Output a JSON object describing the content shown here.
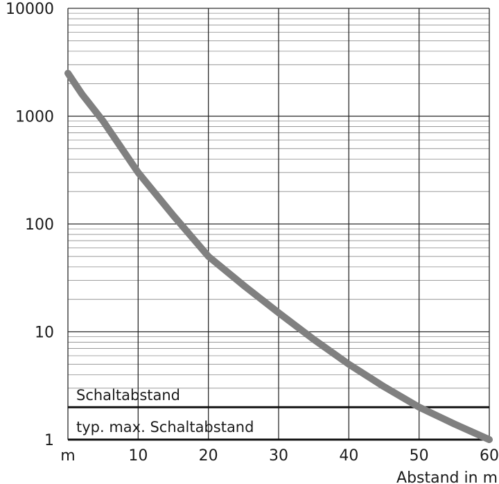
{
  "chart_data": {
    "type": "line",
    "title": "",
    "xlabel": "Abstand in m",
    "ylabel": "",
    "x_unit_label": "m",
    "xlim": [
      0,
      60
    ],
    "ylim": [
      1,
      10000
    ],
    "yscale": "log",
    "grid": true,
    "x_ticks": [
      10,
      20,
      30,
      40,
      50,
      60
    ],
    "x_tick_labels": [
      "10",
      "20",
      "30",
      "40",
      "50",
      "60"
    ],
    "y_ticks": [
      1,
      10,
      100,
      1000,
      10000
    ],
    "y_tick_labels": [
      "1",
      "10",
      "100",
      "1000",
      "10000"
    ],
    "series": [
      {
        "name": "",
        "color": "#808080",
        "x": [
          0,
          2,
          5,
          10,
          15,
          20,
          25,
          30,
          35,
          40,
          45,
          50,
          55,
          60
        ],
        "y": [
          2500,
          1600,
          900,
          300,
          120,
          50,
          27,
          15,
          8.5,
          5,
          3.1,
          2,
          1.4,
          1
        ]
      }
    ],
    "reference_lines": [
      {
        "y": 2,
        "label": "Schaltabstand"
      },
      {
        "y": 1,
        "label": "typ. max. Schaltabstand"
      }
    ]
  }
}
